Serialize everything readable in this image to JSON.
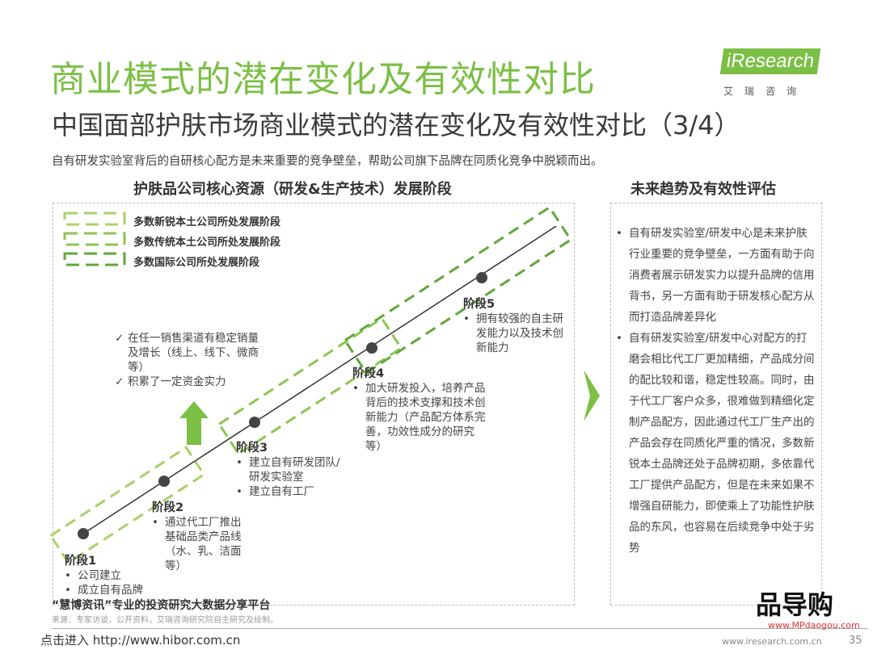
{
  "title": "商业模式的潜在变化及有效性对比",
  "subtitle": "中国面部护肤市场商业模式的潜在变化及有效性对比（3/4）",
  "description": "自有研发实验室背后的自研核心配方是未来重要的竞争壁垒，帮助公司旗下品牌在同质化竞争中脱颖而出。",
  "logo": {
    "text": "iResearch",
    "cn": "艾瑞咨询"
  },
  "left": {
    "header": "护肤品公司核心资源（研发&生产技术）发展阶段",
    "legend": [
      "多数新锐本土公司所处发展阶段",
      "多数传统本土公司所处发展阶段",
      "多数国际公司所处发展阶段"
    ],
    "legend_colors": [
      "#a9d16a",
      "#8cc64f",
      "#5fa83a"
    ],
    "checks": [
      "在任一销售渠道有稳定销量及增长（线上、线下、微商等）",
      "积累了一定资金实力"
    ],
    "stages": [
      {
        "name": "阶段1",
        "items": [
          "公司建立",
          "成立自有品牌"
        ]
      },
      {
        "name": "阶段2",
        "items": [
          "通过代工厂推出基础品类产品线（水、乳、洁面等）"
        ]
      },
      {
        "name": "阶段3",
        "items": [
          "建立自有研发团队/研发实验室",
          "建立自有工厂"
        ]
      },
      {
        "name": "阶段4",
        "items": [
          "加大研发投入，培养产品背后的技术支撑和技术创新能力（产品配方体系完善，功效性成分的研究等）"
        ]
      },
      {
        "name": "阶段5",
        "items": [
          "拥有较强的自主研发能力以及技术创新能力"
        ]
      }
    ]
  },
  "right": {
    "header": "未来趋势及有效性评估",
    "items": [
      "自有研发实验室/研发中心是未来护肤行业重要的竞争壁垒，一方面有助于向消费者展示研发实力以提升品牌的信用背书，另一方面有助于研发核心配方从而打造品牌差异化",
      "自有研发实验室/研发中心对配方的打磨会相比代工厂更加精细，产品成分间的配比较和谐，稳定性较高。同时，由于代工厂客户众多，很难做到精细化定制产品配方，因此通过代工厂生产出的产品会存在同质化严重的情况，多数新锐本土品牌还处于品牌初期，多依靠代工厂提供产品配方，但是在未来如果不增强自研能力，即使乘上了功能性护肤品的东风，也容易在后续竞争中处于劣势"
    ]
  },
  "footer": {
    "source": "来源：专家访谈，公开资料，艾瑞咨询研究院自主研究及绘制。",
    "watermark1": "“慧博资讯”专业的投资研究大数据分享平台",
    "watermark2": "点击进入 http://www.hibor.com.cn",
    "site": "www.iresearch.com.cn",
    "page": "35",
    "mp_logo": "品导购",
    "mp_url": "www.MPdaogou.com"
  }
}
